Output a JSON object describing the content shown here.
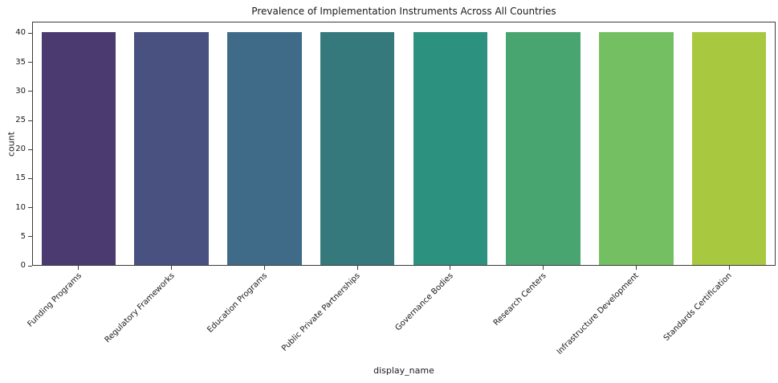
{
  "chart_data": {
    "type": "bar",
    "title": "Prevalence of Implementation Instruments Across All Countries",
    "xlabel": "display_name",
    "ylabel": "count",
    "categories": [
      "Funding Programs",
      "Regulatory Frameworks",
      "Education Programs",
      "Public Private Partnerships",
      "Governance Bodies",
      "Research Centers",
      "Infrastructure Development",
      "Standards Certification"
    ],
    "values": [
      40,
      40,
      40,
      40,
      40,
      40,
      40,
      40
    ],
    "bar_colors": [
      "#4a3a70",
      "#485180",
      "#3f6b89",
      "#35797d",
      "#2d9180",
      "#48a56f",
      "#75bf63",
      "#a8c840"
    ],
    "yticks": [
      0,
      5,
      10,
      15,
      20,
      25,
      30,
      35,
      40
    ],
    "ylim": [
      0,
      42
    ],
    "grid": false,
    "legend": null,
    "xtick_rotation_deg": 45,
    "bar_rel_width": 0.8,
    "background_color": "#ffffff",
    "text_color": "#1a1a1a",
    "spine_color": "#3b3b3b"
  }
}
